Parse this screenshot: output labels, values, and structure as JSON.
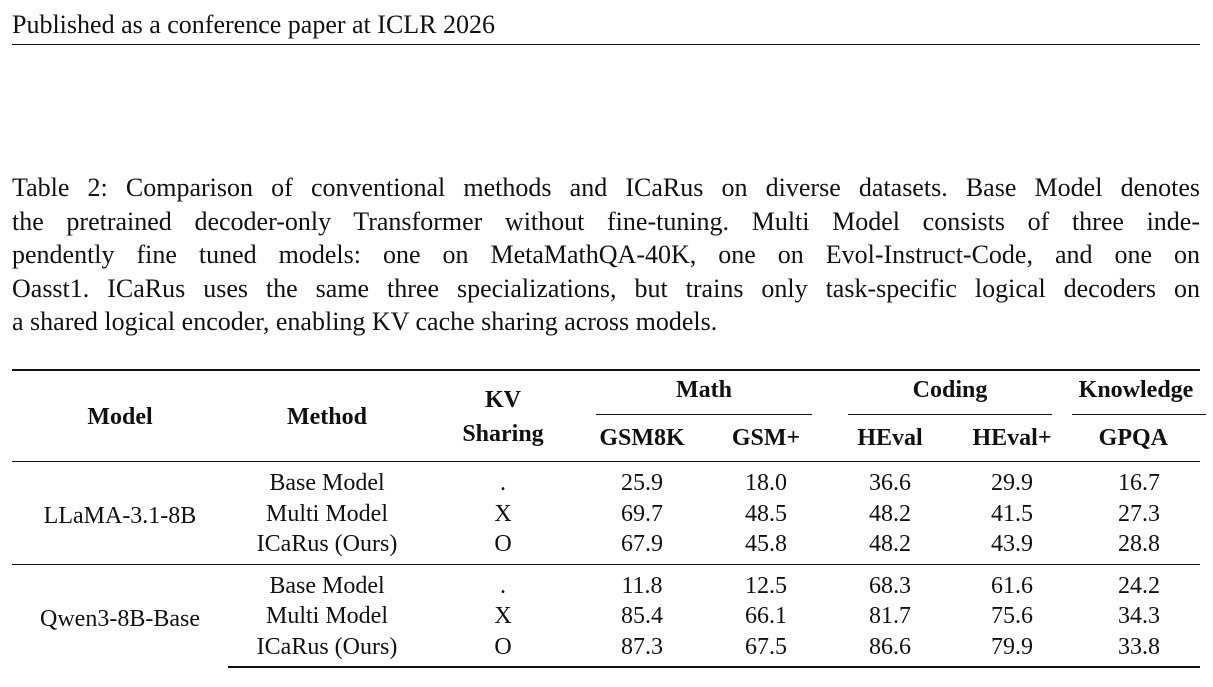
{
  "header": {
    "running_title": "Published as a conference paper at ICLR 2026"
  },
  "caption": {
    "lines": [
      "Table 2: Comparison of conventional methods and ICaRus on diverse datasets. Base Model denotes",
      "the pretrained decoder-only Transformer without fine-tuning. Multi Model consists of three inde-",
      "pendently fine tuned models: one on MetaMathQA-40K, one on Evol-Instruct-Code, and one on",
      "Oasst1. ICaRus uses the same three specializations, but trains only task-specific logical decoders on",
      "a shared logical encoder, enabling KV cache sharing across models."
    ]
  },
  "table": {
    "headers": {
      "model": "Model",
      "method": "Method",
      "kv_line1": "KV",
      "kv_line2": "Sharing",
      "group_math": "Math",
      "group_coding": "Coding",
      "group_knowledge": "Knowledge",
      "gsm8k": "GSM8K",
      "gsm_plus": "GSM+",
      "heval": "HEval",
      "heval_plus": "HEval+",
      "gpqa": "GPQA"
    },
    "groups": [
      {
        "model": "LLaMA-3.1-8B",
        "rows": [
          {
            "method": "Base Model",
            "kv": ".",
            "gsm8k": "25.9",
            "gsm_plus": "18.0",
            "heval": "36.6",
            "heval_plus": "29.9",
            "gpqa": "16.7",
            "bold": []
          },
          {
            "method": "Multi Model",
            "kv": "X",
            "gsm8k": "69.7",
            "gsm_plus": "48.5",
            "heval": "48.2",
            "heval_plus": "41.5",
            "gpqa": "27.3",
            "bold": [
              "gsm8k",
              "gsm_plus"
            ]
          },
          {
            "method": "ICaRus (Ours)",
            "kv": "O",
            "gsm8k": "67.9",
            "gsm_plus": "45.8",
            "heval": "48.2",
            "heval_plus": "43.9",
            "gpqa": "28.8",
            "bold": [
              "heval",
              "heval_plus",
              "gpqa"
            ]
          }
        ]
      },
      {
        "model": "Qwen3-8B-Base",
        "rows": [
          {
            "method": "Base Model",
            "kv": ".",
            "gsm8k": "11.8",
            "gsm_plus": "12.5",
            "heval": "68.3",
            "heval_plus": "61.6",
            "gpqa": "24.2",
            "bold": []
          },
          {
            "method": "Multi Model",
            "kv": "X",
            "gsm8k": "85.4",
            "gsm_plus": "66.1",
            "heval": "81.7",
            "heval_plus": "75.6",
            "gpqa": "34.3",
            "bold": [
              "gpqa"
            ]
          },
          {
            "method": "ICaRus (Ours)",
            "kv": "O",
            "gsm8k": "87.3",
            "gsm_plus": "67.5",
            "heval": "86.6",
            "heval_plus": "79.9",
            "gpqa": "33.8",
            "bold": [
              "gsm8k",
              "gsm_plus",
              "heval",
              "heval_plus"
            ]
          }
        ]
      }
    ]
  }
}
